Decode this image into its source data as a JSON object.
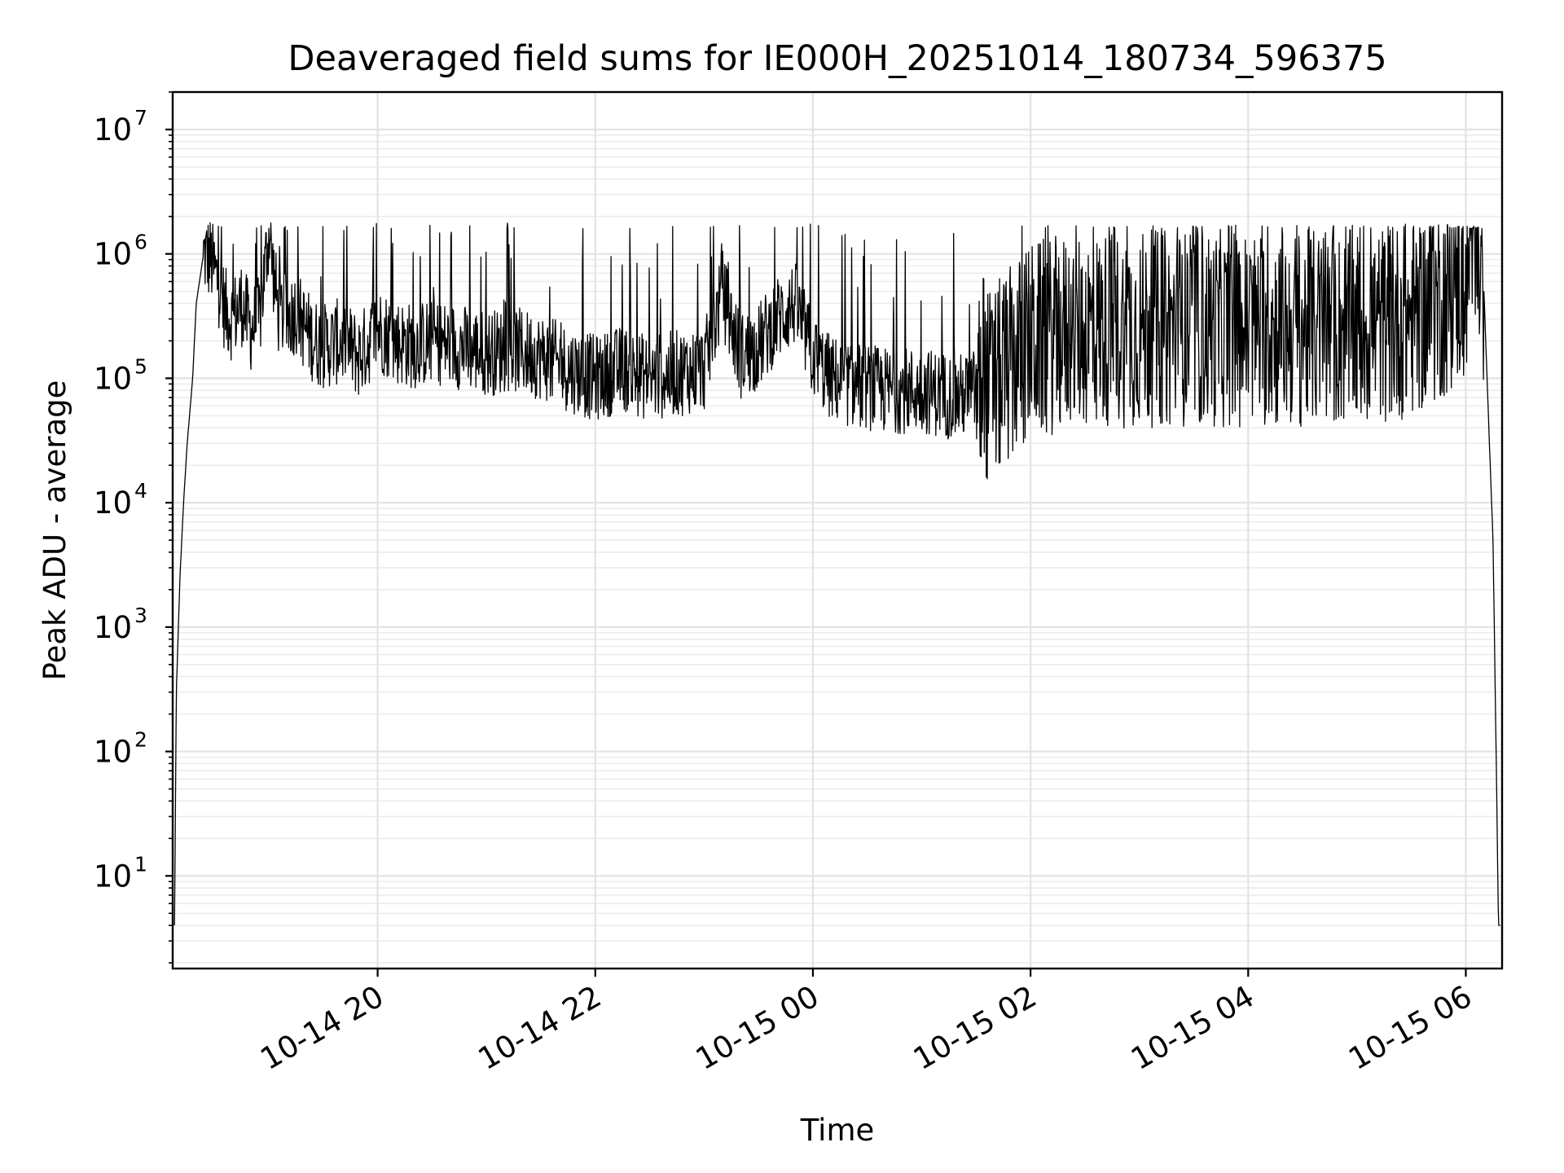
{
  "chart_data": {
    "type": "line",
    "title": "Deaveraged field sums for IE000H_20251014_180734_596375",
    "xlabel": "Time",
    "ylabel": "Peak ADU - average",
    "xlim": [
      "2025-10-14 18:07",
      "2025-10-15 06:20"
    ],
    "ylim": [
      1.8,
      20000000
    ],
    "yscale": "log",
    "grid": true,
    "x_ticks": [
      "10-14 20",
      "10-14 22",
      "10-15 00",
      "10-15 02",
      "10-15 04",
      "10-15 06"
    ],
    "y_ticks": [
      {
        "base": "10",
        "exp": "1"
      },
      {
        "base": "10",
        "exp": "2"
      },
      {
        "base": "10",
        "exp": "3"
      },
      {
        "base": "10",
        "exp": "4"
      },
      {
        "base": "10",
        "exp": "5"
      },
      {
        "base": "10",
        "exp": "6"
      },
      {
        "base": "10",
        "exp": "7"
      }
    ],
    "color": "#000000",
    "series": [
      {
        "x": [
          "2025-10-14 18:08",
          "2025-10-14 18:09",
          "2025-10-14 18:11",
          "2025-10-14 18:13",
          "2025-10-14 18:15",
          "2025-10-14 18:18",
          "2025-10-14 18:20",
          "2025-10-14 18:24",
          "2025-10-14 18:28",
          "2025-10-14 18:32",
          "2025-10-14 18:36",
          "2025-10-14 18:40",
          "2025-10-14 18:45",
          "2025-10-14 18:50",
          "2025-10-14 18:55",
          "2025-10-14 19:00",
          "2025-10-14 19:05",
          "2025-10-14 19:10",
          "2025-10-14 19:15",
          "2025-10-14 19:20",
          "2025-10-14 19:25",
          "2025-10-14 19:30",
          "2025-10-14 19:40",
          "2025-10-14 19:50",
          "2025-10-14 20:00",
          "2025-10-14 20:10",
          "2025-10-14 20:20",
          "2025-10-14 20:30",
          "2025-10-14 20:45",
          "2025-10-14 21:00",
          "2025-10-14 21:15",
          "2025-10-14 21:30",
          "2025-10-14 21:45",
          "2025-10-14 22:00",
          "2025-10-14 22:15",
          "2025-10-14 22:30",
          "2025-10-14 22:45",
          "2025-10-14 23:00",
          "2025-10-14 23:10",
          "2025-10-14 23:20",
          "2025-10-14 23:30",
          "2025-10-14 23:40",
          "2025-10-14 23:50",
          "2025-10-15 00:00",
          "2025-10-15 00:10",
          "2025-10-15 00:20",
          "2025-10-15 00:40",
          "2025-10-15 01:00",
          "2025-10-15 01:20",
          "2025-10-15 01:40",
          "2025-10-15 02:00",
          "2025-10-15 02:30",
          "2025-10-15 03:00",
          "2025-10-15 03:30",
          "2025-10-15 04:00",
          "2025-10-15 04:30",
          "2025-10-15 05:00",
          "2025-10-15 05:30",
          "2025-10-15 05:45",
          "2025-10-15 06:00",
          "2025-10-15 06:05",
          "2025-10-15 06:10",
          "2025-10-15 06:13",
          "2025-10-15 06:15",
          "2025-10-15 06:17",
          "2025-10-15 06:18",
          "2025-10-15 06:19"
        ],
        "values": [
          4,
          300,
          2500,
          10000,
          30000,
          100000,
          400000,
          1000000,
          900000,
          600000,
          350000,
          300000,
          400000,
          250000,
          300000,
          1500000,
          350000,
          300000,
          350000,
          250000,
          200000,
          180000,
          200000,
          150000,
          250000,
          200000,
          180000,
          200000,
          180000,
          160000,
          170000,
          150000,
          120000,
          100000,
          120000,
          100000,
          110000,
          120000,
          500000,
          150000,
          180000,
          300000,
          400000,
          150000,
          100000,
          90000,
          80000,
          80000,
          70000,
          90000,
          200000,
          250000,
          250000,
          250000,
          250000,
          250000,
          250000,
          300000,
          400000,
          600000,
          1200000,
          500000,
          30000,
          5000,
          50,
          4,
          4
        ]
      }
    ]
  }
}
